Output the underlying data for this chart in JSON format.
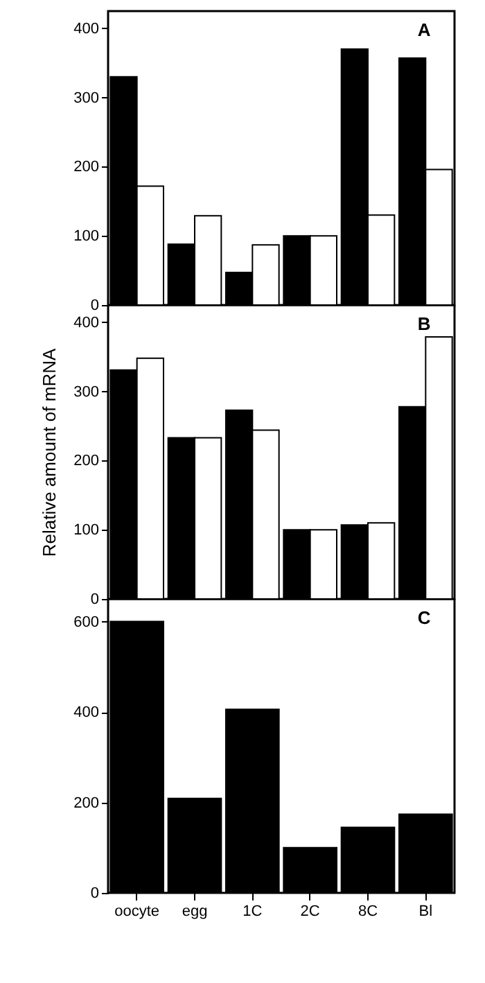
{
  "chart_data": [
    {
      "type": "bar",
      "categories": [
        null,
        null,
        null,
        null,
        null,
        null
      ],
      "series": [
        {
          "color": "#000000",
          "values": [
            330,
            88,
            47,
            100,
            370,
            357
          ]
        },
        {
          "color": "#ffffff",
          "values": [
            172,
            129,
            87,
            100,
            130,
            196
          ]
        }
      ],
      "ylim": [
        0,
        425
      ],
      "yticks": [
        0,
        100,
        200,
        300,
        400
      ],
      "tick_labels": "y",
      "annotations": [
        "A"
      ]
    },
    {
      "type": "bar",
      "categories": [
        null,
        null,
        null,
        null,
        null,
        null
      ],
      "ylabel": "Relative amount of mRNA",
      "series": [
        {
          "color": "#000000",
          "values": [
            331,
            233,
            273,
            100,
            107,
            278
          ]
        },
        {
          "color": "#ffffff",
          "values": [
            348,
            233,
            244,
            100,
            110,
            379
          ]
        }
      ],
      "ylim": [
        0,
        425
      ],
      "yticks": [
        0,
        100,
        200,
        300,
        400
      ],
      "tick_labels": "y",
      "annotations": [
        "B"
      ]
    },
    {
      "type": "bar",
      "categories": [
        "oocyte",
        "egg",
        "1C",
        "2C",
        "8C",
        "Bl"
      ],
      "series": [
        {
          "color": "#000000",
          "values": [
            600,
            209,
            406,
            100,
            145,
            174
          ]
        }
      ],
      "ylim": [
        0,
        650
      ],
      "yticks": [
        0,
        200,
        400,
        600
      ],
      "annotations": [
        "C"
      ]
    }
  ]
}
